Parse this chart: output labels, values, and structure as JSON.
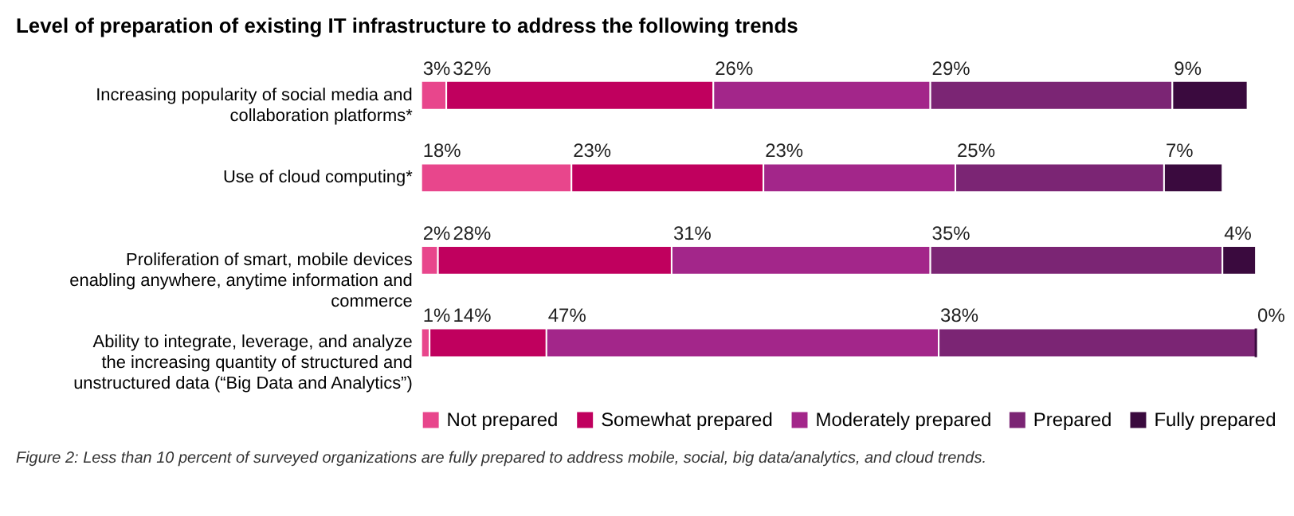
{
  "chart_data": {
    "type": "bar",
    "orientation": "horizontal",
    "stacked": true,
    "title": "Level of preparation of existing IT infrastructure to address the following trends",
    "categories": [
      "Increasing popularity of social media and collaboration platforms*",
      "Use of cloud computing*",
      "Proliferation of smart, mobile devices enabling anywhere, anytime information and commerce",
      "Ability to integrate, leverage, and analyze the increasing quantity of structured and unstructured data (“Big Data and Analytics”)"
    ],
    "series": [
      {
        "name": "Not prepared",
        "color": "#e8468c",
        "values": [
          3,
          18,
          2,
          1
        ],
        "value_labels": [
          "3%",
          "18%",
          "2%",
          "1%"
        ]
      },
      {
        "name": "Somewhat prepared",
        "color": "#c0005e",
        "values": [
          32,
          23,
          28,
          14
        ],
        "value_labels": [
          "32%",
          "23%",
          "28%",
          "14%"
        ]
      },
      {
        "name": "Moderately prepared",
        "color": "#a3268a",
        "values": [
          26,
          23,
          31,
          47
        ],
        "value_labels": [
          "26%",
          "23%",
          "31%",
          "47%"
        ]
      },
      {
        "name": "Prepared",
        "color": "#7b2574",
        "values": [
          29,
          25,
          35,
          38
        ],
        "value_labels": [
          "29%",
          "25%",
          "35%",
          "38%"
        ]
      },
      {
        "name": "Fully prepared",
        "color": "#3a0a3e",
        "values": [
          9,
          7,
          4,
          0
        ],
        "value_labels": [
          "9%",
          "7%",
          "4%",
          "0%"
        ]
      }
    ],
    "xlim": [
      0,
      100
    ],
    "tick_labels": "y",
    "legend": "bottom",
    "annotations": [
      "Figure 2: Less than 10 percent of surveyed organizations are fully prepared to address mobile, social, big data/analytics, and cloud trends."
    ]
  }
}
